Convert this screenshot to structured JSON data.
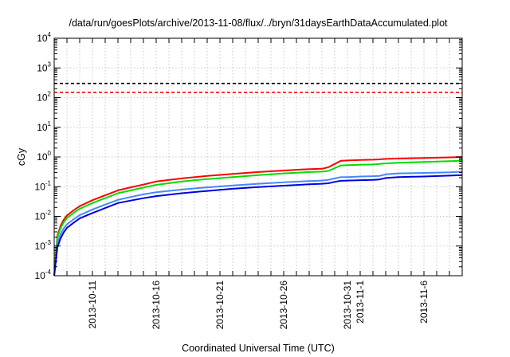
{
  "chart_data": {
    "type": "line",
    "title": "/data/run/goesPlots/archive/2013-11-08/flux/../bryn/31daysEarthDataAccumulated.plot",
    "xlabel": "Coordinated Universal Time (UTC)",
    "ylabel": "cGy",
    "x_scale": "time",
    "y_scale": "log",
    "xlim": [
      "2013-10-08",
      "2013-11-09"
    ],
    "ylim": [
      0.0001,
      10000
    ],
    "grid": true,
    "x_ticks": [
      "2013-10-11",
      "2013-10-16",
      "2013-10-21",
      "2013-10-26",
      "2013-10-31",
      "2013-11-1",
      "2013-11-6"
    ],
    "y_ticks": [
      {
        "base": "10",
        "exp": "-4",
        "value": 0.0001
      },
      {
        "base": "10",
        "exp": "-3",
        "value": 0.001
      },
      {
        "base": "10",
        "exp": "-2",
        "value": 0.01
      },
      {
        "base": "10",
        "exp": "-1",
        "value": 0.1
      },
      {
        "base": "10",
        "exp": "0",
        "value": 1
      },
      {
        "base": "10",
        "exp": "1",
        "value": 10
      },
      {
        "base": "10",
        "exp": "2",
        "value": 100
      },
      {
        "base": "10",
        "exp": "3",
        "value": 1000
      },
      {
        "base": "10",
        "exp": "4",
        "value": 10000
      }
    ],
    "reference_lines": [
      {
        "y": 300,
        "color": "#000000",
        "style": "dashed"
      },
      {
        "y": 150,
        "color": "#ff0000",
        "style": "dashed"
      }
    ],
    "series": [
      {
        "color": "#ff0000",
        "x": [
          "2013-10-08",
          "2013-10-08 06:00",
          "2013-10-08 12:00",
          "2013-10-08 18:00",
          "2013-10-09",
          "2013-10-09 12:00",
          "2013-10-10",
          "2013-10-11",
          "2013-10-12",
          "2013-10-13",
          "2013-10-14",
          "2013-10-15",
          "2013-10-16",
          "2013-10-18",
          "2013-10-20",
          "2013-10-22",
          "2013-10-24",
          "2013-10-26",
          "2013-10-28",
          "2013-10-29",
          "2013-10-29 12:00",
          "2013-10-30",
          "2013-10-30 12:00",
          "2013-10-31",
          "2013-11-1",
          "2013-11-2",
          "2013-11-2 12:00",
          "2013-11-3",
          "2013-11-4",
          "2013-11-6",
          "2013-11-8",
          "2013-11-9"
        ],
        "values": [
          0.0001,
          0.0022,
          0.0048,
          0.0077,
          0.0107,
          0.0157,
          0.022,
          0.035,
          0.051,
          0.075,
          0.095,
          0.118,
          0.15,
          0.19,
          0.23,
          0.27,
          0.31,
          0.35,
          0.39,
          0.4,
          0.45,
          0.58,
          0.75,
          0.76,
          0.79,
          0.81,
          0.83,
          0.86,
          0.89,
          0.93,
          0.97,
          1.0
        ]
      },
      {
        "color": "#00dd00",
        "x": [
          "2013-10-08",
          "2013-10-08 06:00",
          "2013-10-08 12:00",
          "2013-10-08 18:00",
          "2013-10-09",
          "2013-10-09 12:00",
          "2013-10-10",
          "2013-10-11",
          "2013-10-12",
          "2013-10-13",
          "2013-10-14",
          "2013-10-15",
          "2013-10-16",
          "2013-10-18",
          "2013-10-20",
          "2013-10-22",
          "2013-10-24",
          "2013-10-26",
          "2013-10-28",
          "2013-10-29",
          "2013-10-29 12:00",
          "2013-10-30",
          "2013-10-30 12:00",
          "2013-10-31",
          "2013-11-1",
          "2013-11-2",
          "2013-11-2 12:00",
          "2013-11-3",
          "2013-11-4",
          "2013-11-6",
          "2013-11-8",
          "2013-11-9"
        ],
        "values": [
          0.0001,
          0.0019,
          0.004,
          0.0063,
          0.0088,
          0.0127,
          0.018,
          0.028,
          0.041,
          0.06,
          0.075,
          0.093,
          0.115,
          0.15,
          0.18,
          0.21,
          0.245,
          0.28,
          0.31,
          0.32,
          0.34,
          0.42,
          0.52,
          0.53,
          0.55,
          0.56,
          0.58,
          0.61,
          0.64,
          0.68,
          0.72,
          0.75
        ]
      },
      {
        "color": "#4488ff",
        "x": [
          "2013-10-08",
          "2013-10-08 06:00",
          "2013-10-08 12:00",
          "2013-10-08 18:00",
          "2013-10-09",
          "2013-10-09 12:00",
          "2013-10-10",
          "2013-10-11",
          "2013-10-12",
          "2013-10-13",
          "2013-10-14",
          "2013-10-15",
          "2013-10-16",
          "2013-10-18",
          "2013-10-20",
          "2013-10-22",
          "2013-10-24",
          "2013-10-26",
          "2013-10-28",
          "2013-10-29",
          "2013-10-29 12:00",
          "2013-10-30",
          "2013-10-30 12:00",
          "2013-10-31",
          "2013-11-1",
          "2013-11-2",
          "2013-11-2 12:00",
          "2013-11-3",
          "2013-11-4",
          "2013-11-6",
          "2013-11-8",
          "2013-11-9"
        ],
        "values": [
          0.0001,
          0.0012,
          0.0025,
          0.0039,
          0.0054,
          0.0078,
          0.011,
          0.017,
          0.025,
          0.036,
          0.045,
          0.055,
          0.065,
          0.08,
          0.095,
          0.11,
          0.125,
          0.14,
          0.155,
          0.16,
          0.17,
          0.19,
          0.21,
          0.21,
          0.22,
          0.225,
          0.23,
          0.26,
          0.28,
          0.29,
          0.305,
          0.32
        ]
      },
      {
        "color": "#0000dd",
        "x": [
          "2013-10-08",
          "2013-10-08 06:00",
          "2013-10-08 12:00",
          "2013-10-08 18:00",
          "2013-10-09",
          "2013-10-09 12:00",
          "2013-10-10",
          "2013-10-11",
          "2013-10-12",
          "2013-10-13",
          "2013-10-14",
          "2013-10-15",
          "2013-10-16",
          "2013-10-18",
          "2013-10-20",
          "2013-10-22",
          "2013-10-24",
          "2013-10-26",
          "2013-10-28",
          "2013-10-29",
          "2013-10-29 12:00",
          "2013-10-30",
          "2013-10-30 12:00",
          "2013-10-31",
          "2013-11-1",
          "2013-11-2",
          "2013-11-2 12:00",
          "2013-11-3",
          "2013-11-4",
          "2013-11-6",
          "2013-11-8",
          "2013-11-9"
        ],
        "values": [
          0.0001,
          0.0009,
          0.0018,
          0.0029,
          0.0041,
          0.006,
          0.0085,
          0.013,
          0.019,
          0.028,
          0.034,
          0.041,
          0.048,
          0.06,
          0.072,
          0.085,
          0.097,
          0.108,
          0.12,
          0.125,
          0.13,
          0.145,
          0.158,
          0.16,
          0.165,
          0.17,
          0.175,
          0.195,
          0.21,
          0.22,
          0.235,
          0.245
        ]
      }
    ]
  }
}
